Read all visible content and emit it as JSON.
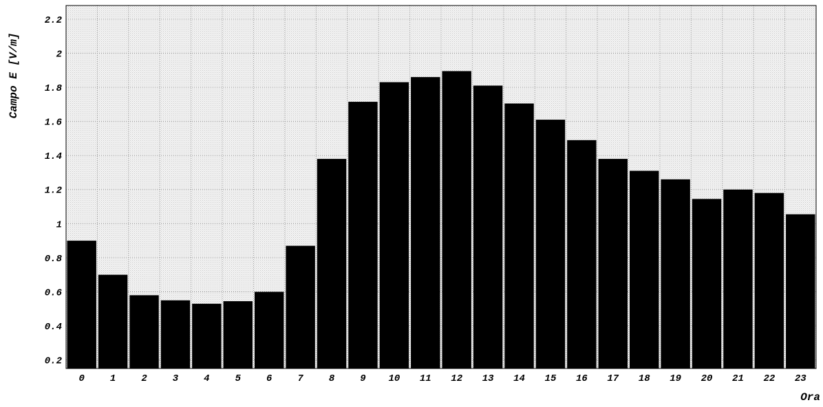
{
  "chart_data": {
    "type": "bar",
    "title": "",
    "xlabel": "Ora",
    "ylabel": "Campo E [V/m]",
    "categories": [
      "0",
      "1",
      "2",
      "3",
      "4",
      "5",
      "6",
      "7",
      "8",
      "9",
      "10",
      "11",
      "12",
      "13",
      "14",
      "15",
      "16",
      "17",
      "18",
      "19",
      "20",
      "21",
      "22",
      "23"
    ],
    "values": [
      0.9,
      0.7,
      0.58,
      0.55,
      0.53,
      0.545,
      0.6,
      0.87,
      1.38,
      1.715,
      1.83,
      1.86,
      1.895,
      1.81,
      1.705,
      1.61,
      1.49,
      1.38,
      1.31,
      1.26,
      1.145,
      1.2,
      1.18,
      1.055
    ],
    "yticks": [
      "0.2",
      "0.4",
      "0.6",
      "0.8",
      "1",
      "1.2",
      "1.4",
      "1.6",
      "1.8",
      "2",
      "2.2"
    ],
    "ylim": [
      0.15,
      2.28
    ],
    "grid": true,
    "bar_color": "#000000",
    "grid_color": "#9a9a9a",
    "background_color": "#ececec"
  }
}
